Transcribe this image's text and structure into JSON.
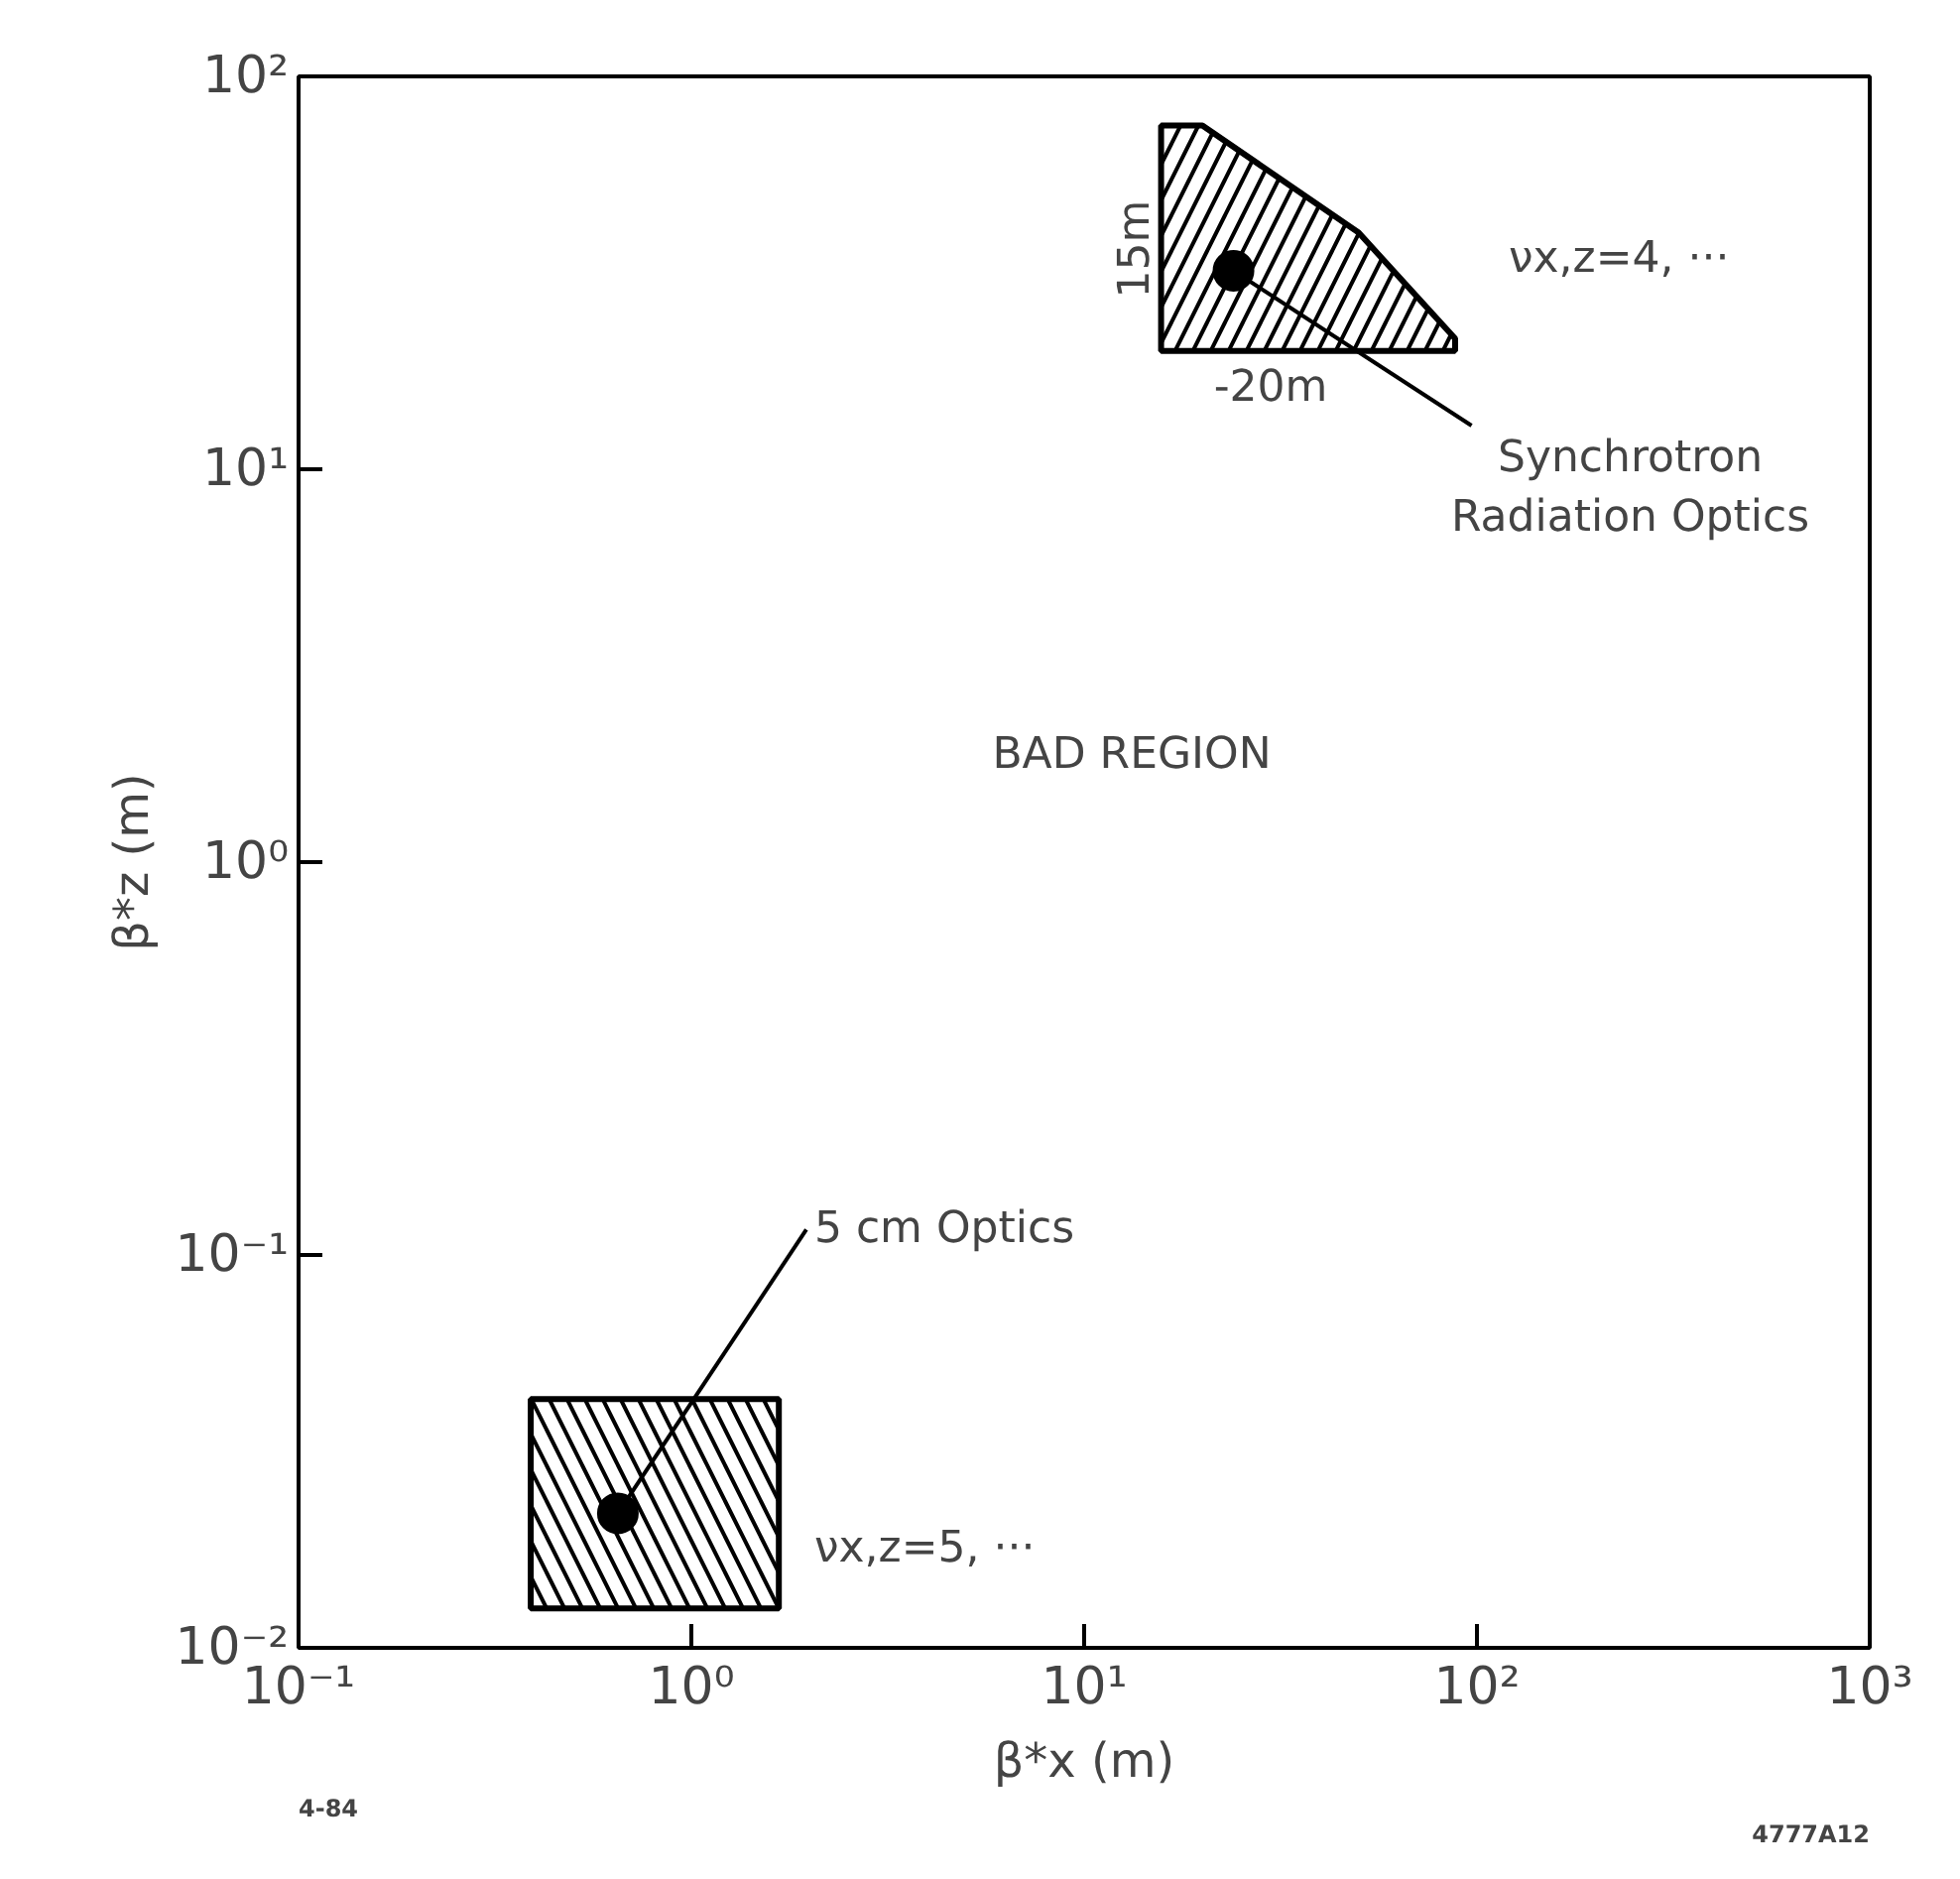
{
  "chart_data": {
    "type": "scatter",
    "xlabel": "β*x (m)",
    "ylabel": "β*z (m)",
    "log": "xy",
    "grid": false,
    "xlim": [
      0.1,
      1000
    ],
    "ylim": [
      0.01,
      100
    ],
    "xticks": [
      {
        "value": 0.1,
        "label": "10⁻¹"
      },
      {
        "value": 1,
        "label": "10⁰"
      },
      {
        "value": 10,
        "label": "10¹"
      },
      {
        "value": 100,
        "label": "10²"
      },
      {
        "value": 1000,
        "label": "10³"
      }
    ],
    "yticks": [
      {
        "value": 0.01,
        "label": "10⁻²"
      },
      {
        "value": 0.1,
        "label": "10⁻¹"
      },
      {
        "value": 1,
        "label": "10⁰"
      },
      {
        "value": 10,
        "label": "10¹"
      },
      {
        "value": 100,
        "label": "10²"
      }
    ],
    "series": [
      {
        "type": "area",
        "color": "#000000",
        "x": [
          0.39,
          1.67,
          1.67,
          0.39
        ],
        "values": [
          0.0126,
          0.0126,
          0.043,
          0.043
        ]
      },
      {
        "type": "area",
        "color": "#000000",
        "x": [
          15.7,
          15.7,
          20,
          50,
          88,
          88
        ],
        "values": [
          20,
          75,
          75,
          40,
          21.5,
          20
        ]
      },
      {
        "color": "#000000",
        "marker": "circle",
        "x": [
          0.65,
          24
        ],
        "values": [
          0.022,
          32
        ]
      }
    ],
    "annotations": [
      {
        "text": "5 cm Optics",
        "x": 0.65,
        "y": 0.022
      },
      {
        "text": "Synchrotron\nRadiation Optics",
        "x": 24,
        "y": 32
      },
      "νx,z=4, ···",
      "νx,z=5, ···",
      "BAD REGION",
      "15m",
      "-20m",
      "4-84",
      "4777A12"
    ]
  }
}
